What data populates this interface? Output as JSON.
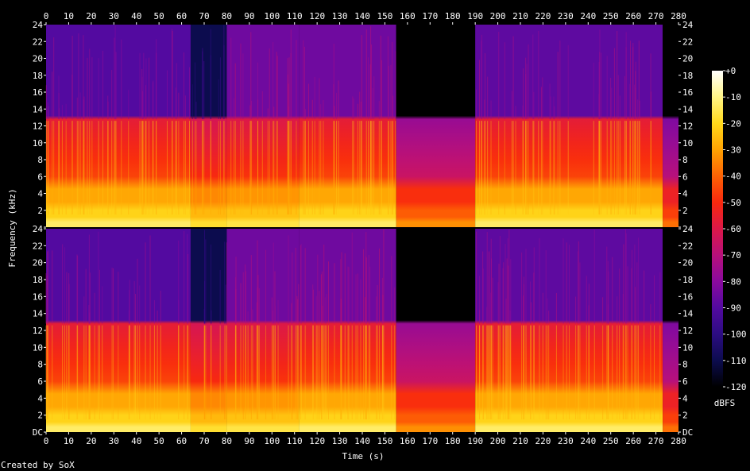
{
  "chart_data": {
    "type": "heatmap",
    "subtype": "spectrogram",
    "xlabel": "Time (s)",
    "ylabel": "Frequency (kHz)",
    "xlim": [
      0,
      280
    ],
    "x_ticks": [
      0,
      10,
      20,
      30,
      40,
      50,
      60,
      70,
      80,
      90,
      100,
      110,
      120,
      130,
      140,
      150,
      160,
      170,
      180,
      190,
      200,
      210,
      220,
      230,
      240,
      250,
      260,
      270,
      280
    ],
    "channels": [
      {
        "ylim": [
          0,
          24
        ],
        "y_ticks": [
          {
            "value": 0,
            "label": "DC"
          },
          {
            "value": 2,
            "label": "2"
          },
          {
            "value": 4,
            "label": "4"
          },
          {
            "value": 6,
            "label": "6"
          },
          {
            "value": 8,
            "label": "8"
          },
          {
            "value": 10,
            "label": "10"
          },
          {
            "value": 12,
            "label": "12"
          },
          {
            "value": 14,
            "label": "14"
          },
          {
            "value": 16,
            "label": "16"
          },
          {
            "value": 18,
            "label": "18"
          },
          {
            "value": 20,
            "label": "20"
          },
          {
            "value": 22,
            "label": "22"
          },
          {
            "value": 24,
            "label": "24"
          }
        ]
      },
      {
        "ylim": [
          0,
          24
        ],
        "y_ticks": [
          {
            "value": 0,
            "label": "DC"
          },
          {
            "value": 2,
            "label": "2"
          },
          {
            "value": 4,
            "label": "4"
          },
          {
            "value": 6,
            "label": "6"
          },
          {
            "value": 8,
            "label": "8"
          },
          {
            "value": 10,
            "label": "10"
          },
          {
            "value": 12,
            "label": "12"
          },
          {
            "value": 14,
            "label": "14"
          },
          {
            "value": 16,
            "label": "16"
          },
          {
            "value": 18,
            "label": "18"
          },
          {
            "value": 20,
            "label": "20"
          },
          {
            "value": 22,
            "label": "22"
          },
          {
            "value": 24,
            "label": "24"
          }
        ]
      }
    ],
    "lowpass_cutoff_khz": 12.8,
    "segments": [
      {
        "start": 0,
        "end": 64,
        "low_band_dbfs": -35,
        "high_band_dbfs": -90
      },
      {
        "start": 64,
        "end": 80,
        "low_band_dbfs": -40,
        "high_band_dbfs": -110
      },
      {
        "start": 80,
        "end": 112,
        "low_band_dbfs": -38,
        "high_band_dbfs": -85
      },
      {
        "start": 112,
        "end": 155,
        "low_band_dbfs": -35,
        "high_band_dbfs": -85
      },
      {
        "start": 155,
        "end": 190,
        "low_band_dbfs": -55,
        "high_band_dbfs": -120
      },
      {
        "start": 190,
        "end": 273,
        "low_band_dbfs": -35,
        "high_band_dbfs": -88
      },
      {
        "start": 273,
        "end": 280,
        "low_band_dbfs": -60,
        "high_band_dbfs": -120
      }
    ],
    "colorbar": {
      "label": "dBFS",
      "range": [
        -120,
        0
      ],
      "ticks": [
        {
          "value": 0,
          "label": "+0"
        },
        {
          "value": -10,
          "label": "-10"
        },
        {
          "value": -20,
          "label": "-20"
        },
        {
          "value": -30,
          "label": "-30"
        },
        {
          "value": -40,
          "label": "-40"
        },
        {
          "value": -50,
          "label": "-50"
        },
        {
          "value": -60,
          "label": "-60"
        },
        {
          "value": -70,
          "label": "-70"
        },
        {
          "value": -80,
          "label": "-80"
        },
        {
          "value": -90,
          "label": "-90"
        },
        {
          "value": -100,
          "label": "-100"
        },
        {
          "value": -110,
          "label": "-110"
        },
        {
          "value": -120,
          "label": "-120"
        }
      ],
      "colors": [
        {
          "db": -120,
          "color": "#000000"
        },
        {
          "db": -110,
          "color": "#0c0c4e"
        },
        {
          "db": -100,
          "color": "#2c0c82"
        },
        {
          "db": -90,
          "color": "#530aa0"
        },
        {
          "db": -80,
          "color": "#8a0a9e"
        },
        {
          "db": -70,
          "color": "#b8107a"
        },
        {
          "db": -60,
          "color": "#dc1848"
        },
        {
          "db": -50,
          "color": "#f8280e"
        },
        {
          "db": -40,
          "color": "#fd6204"
        },
        {
          "db": -30,
          "color": "#ffa202"
        },
        {
          "db": -20,
          "color": "#ffd81a"
        },
        {
          "db": -10,
          "color": "#fff586"
        },
        {
          "db": 0,
          "color": "#ffffff"
        }
      ]
    },
    "footer": "Created by SoX"
  }
}
